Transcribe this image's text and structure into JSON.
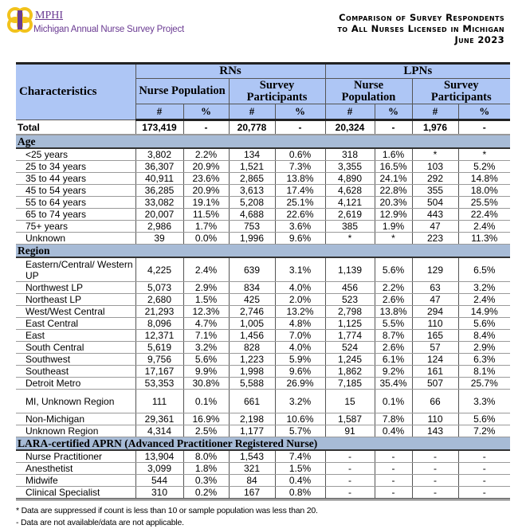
{
  "logo": {
    "name": "MPHI",
    "subtitle": "Michigan Annual Nurse Survey Project"
  },
  "title": {
    "line1": "Comparison of Survey Respondents",
    "line2": "to All Nurses Licensed in Michigan",
    "line3": "June 2023"
  },
  "header": {
    "characteristics": "Characteristics",
    "groups": [
      "RNs",
      "LPNs"
    ],
    "subgroups": [
      "Nurse Population",
      "Survey Participants",
      "Nurse Population",
      "Survey Participants"
    ],
    "units": [
      "#",
      "%",
      "#",
      "%",
      "#",
      "%",
      "#",
      "%"
    ]
  },
  "total": {
    "label": "Total",
    "values": [
      "173,419",
      "-",
      "20,778",
      "-",
      "20,324",
      "-",
      "1,976",
      "-"
    ]
  },
  "sections": [
    {
      "title": "Age",
      "rows": [
        {
          "label": "<25 years",
          "values": [
            "3,802",
            "2.2%",
            "134",
            "0.6%",
            "318",
            "1.6%",
            "*",
            "*"
          ]
        },
        {
          "label": "25 to 34 years",
          "values": [
            "36,307",
            "20.9%",
            "1,521",
            "7.3%",
            "3,355",
            "16.5%",
            "103",
            "5.2%"
          ]
        },
        {
          "label": "35 to 44 years",
          "values": [
            "40,911",
            "23.6%",
            "2,865",
            "13.8%",
            "4,890",
            "24.1%",
            "292",
            "14.8%"
          ]
        },
        {
          "label": "45 to 54 years",
          "values": [
            "36,285",
            "20.9%",
            "3,613",
            "17.4%",
            "4,628",
            "22.8%",
            "355",
            "18.0%"
          ]
        },
        {
          "label": "55 to 64 years",
          "values": [
            "33,082",
            "19.1%",
            "5,208",
            "25.1%",
            "4,121",
            "20.3%",
            "504",
            "25.5%"
          ]
        },
        {
          "label": "65 to 74 years",
          "values": [
            "20,007",
            "11.5%",
            "4,688",
            "22.6%",
            "2,619",
            "12.9%",
            "443",
            "22.4%"
          ]
        },
        {
          "label": "75+ years",
          "values": [
            "2,986",
            "1.7%",
            "753",
            "3.6%",
            "385",
            "1.9%",
            "47",
            "2.4%"
          ]
        },
        {
          "label": "Unknown",
          "values": [
            "39",
            "0.0%",
            "1,996",
            "9.6%",
            "*",
            "*",
            "223",
            "11.3%"
          ]
        }
      ]
    },
    {
      "title": "Region",
      "rows": [
        {
          "label": "Eastern/Central/ Western UP",
          "values": [
            "4,225",
            "2.4%",
            "639",
            "3.1%",
            "1,139",
            "5.6%",
            "129",
            "6.5%"
          ]
        },
        {
          "label": "Northwest LP",
          "values": [
            "5,073",
            "2.9%",
            "834",
            "4.0%",
            "456",
            "2.2%",
            "63",
            "3.2%"
          ]
        },
        {
          "label": "Northeast LP",
          "values": [
            "2,680",
            "1.5%",
            "425",
            "2.0%",
            "523",
            "2.6%",
            "47",
            "2.4%"
          ]
        },
        {
          "label": "West/West Central",
          "values": [
            "21,293",
            "12.3%",
            "2,746",
            "13.2%",
            "2,798",
            "13.8%",
            "294",
            "14.9%"
          ]
        },
        {
          "label": "East Central",
          "values": [
            "8,096",
            "4.7%",
            "1,005",
            "4.8%",
            "1,125",
            "5.5%",
            "110",
            "5.6%"
          ]
        },
        {
          "label": "East",
          "values": [
            "12,371",
            "7.1%",
            "1,456",
            "7.0%",
            "1,774",
            "8.7%",
            "165",
            "8.4%"
          ]
        },
        {
          "label": "South Central",
          "values": [
            "5,619",
            "3.2%",
            "828",
            "4.0%",
            "524",
            "2.6%",
            "57",
            "2.9%"
          ]
        },
        {
          "label": "Southwest",
          "values": [
            "9,756",
            "5.6%",
            "1,223",
            "5.9%",
            "1,245",
            "6.1%",
            "124",
            "6.3%"
          ]
        },
        {
          "label": "Southeast",
          "values": [
            "17,167",
            "9.9%",
            "1,998",
            "9.6%",
            "1,862",
            "9.2%",
            "161",
            "8.1%"
          ]
        },
        {
          "label": "Detroit Metro",
          "values": [
            "53,353",
            "30.8%",
            "5,588",
            "26.9%",
            "7,185",
            "35.4%",
            "507",
            "25.7%"
          ]
        },
        {
          "label": "MI, Unknown Region",
          "values": [
            "111",
            "0.1%",
            "661",
            "3.2%",
            "15",
            "0.1%",
            "66",
            "3.3%"
          ]
        },
        {
          "label": "Non-Michigan",
          "values": [
            "29,361",
            "16.9%",
            "2,198",
            "10.6%",
            "1,587",
            "7.8%",
            "110",
            "5.6%"
          ]
        },
        {
          "label": "Unknown Region",
          "values": [
            "4,314",
            "2.5%",
            "1,177",
            "5.7%",
            "91",
            "0.4%",
            "143",
            "7.2%"
          ]
        }
      ]
    },
    {
      "title": "LARA-certified APRN (Advanced Practitioner Registered Nurse)",
      "rows": [
        {
          "label": "Nurse Practitioner",
          "values": [
            "13,904",
            "8.0%",
            "1,543",
            "7.4%",
            "-",
            "-",
            "-",
            "-"
          ]
        },
        {
          "label": "Anesthetist",
          "values": [
            "3,099",
            "1.8%",
            "321",
            "1.5%",
            "-",
            "-",
            "-",
            "-"
          ]
        },
        {
          "label": "Midwife",
          "values": [
            "544",
            "0.3%",
            "84",
            "0.4%",
            "-",
            "-",
            "-",
            "-"
          ]
        },
        {
          "label": "Clinical Specialist",
          "values": [
            "310",
            "0.2%",
            "167",
            "0.8%",
            "-",
            "-",
            "-",
            "-"
          ]
        }
      ]
    }
  ],
  "footnotes": [
    "* Data are suppressed if count is less than 10 or sample population was less than 20.",
    "- Data are not available/data are not applicable."
  ],
  "colors": {
    "header_bg": "#aec6f5",
    "section_bg": "#a7bbd6",
    "brand": "#6a3a92",
    "logo_gold": "#f2c21b"
  }
}
